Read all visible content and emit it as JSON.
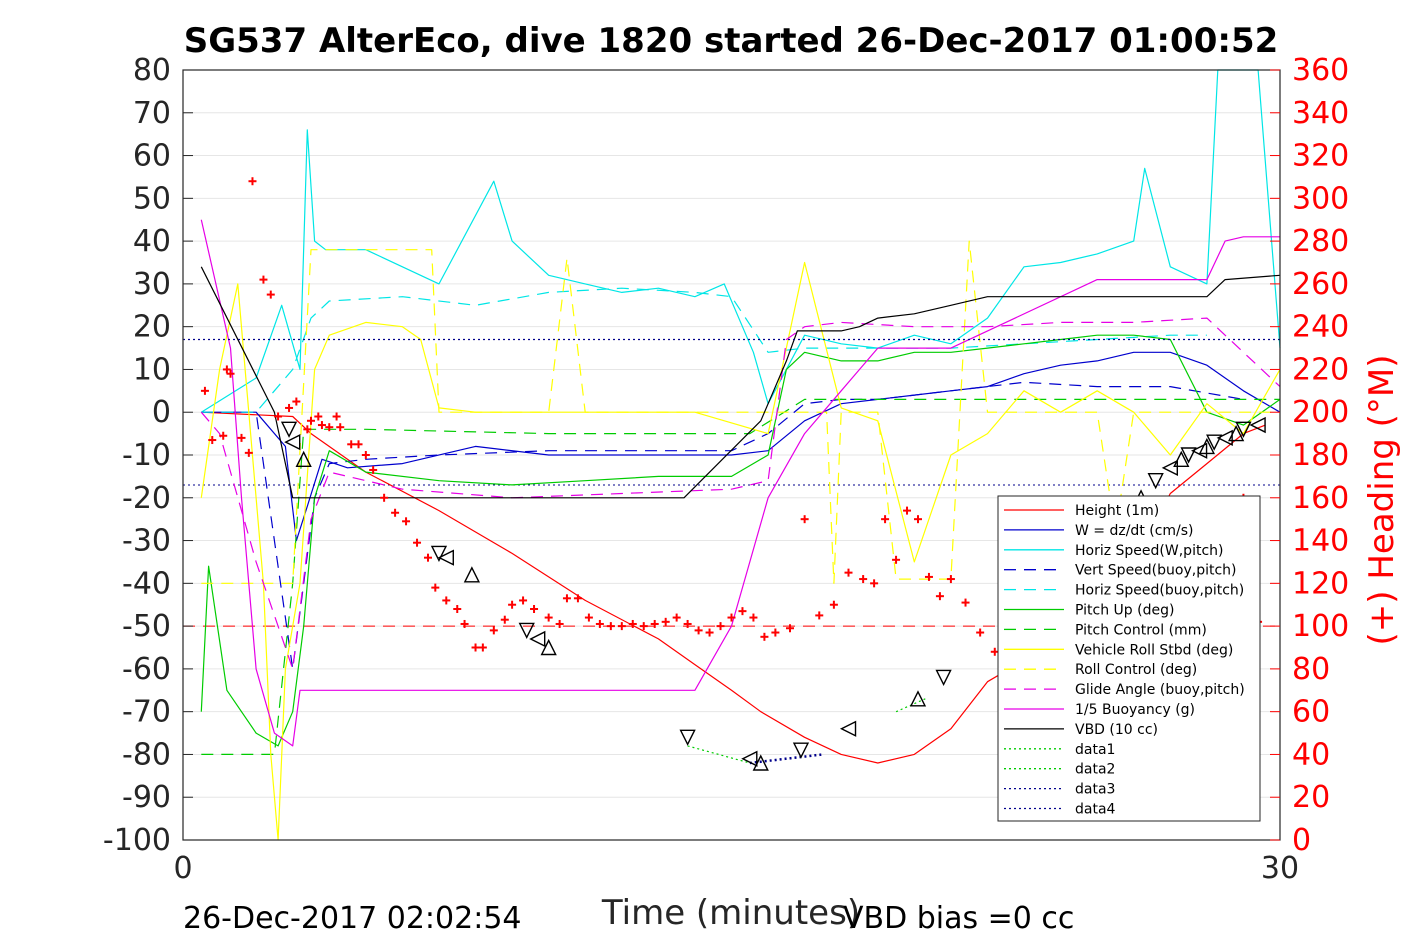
{
  "chart_data": {
    "type": "line",
    "title": "SG537 AlterEco, dive 1820 started 26-Dec-2017 01:00:52",
    "xlabel": "Time (minutes)",
    "ylabel_right": "(+) Heading (°M)",
    "xlim": [
      0,
      30
    ],
    "ylim": [
      -100,
      80
    ],
    "ylim_right": [
      0,
      360
    ],
    "x_ticks": [
      0,
      30
    ],
    "y_ticks": [
      80,
      70,
      60,
      50,
      40,
      30,
      20,
      10,
      0,
      -10,
      -20,
      -30,
      -40,
      -50,
      -60,
      -70,
      -80,
      -90,
      -100
    ],
    "y_ticks_right": [
      360,
      340,
      320,
      300,
      280,
      260,
      240,
      220,
      200,
      180,
      160,
      140,
      120,
      100,
      80,
      60,
      40,
      20,
      0
    ],
    "grid": "horizontal",
    "legend_position": "lower-right",
    "footer_left": "26-Dec-2017 02:02:54",
    "footer_right": "VBD bias =0 cc",
    "colors": {
      "height": "#ff0000",
      "w": "#0000cd",
      "horiz_w": "#00e6e6",
      "pitch": "#00cc00",
      "roll": "#ffff00",
      "glide": "#e600e6",
      "vbd": "#000000",
      "data4": "#00008b",
      "heading": "#ff0000"
    },
    "series": [
      {
        "name": "Height (1m)",
        "x": [
          0.5,
          3,
          3.5,
          5,
          7,
          9,
          11,
          13,
          14,
          15,
          15.8,
          17,
          18,
          19,
          20,
          21,
          22,
          23,
          24,
          25,
          26,
          27,
          28,
          29,
          29.6
        ],
        "y": [
          0,
          -1,
          -5,
          -14,
          -23,
          -33,
          -44,
          -53,
          -59,
          -65,
          -70,
          -76,
          -80,
          -82,
          -80,
          -74,
          -63,
          -58,
          -53,
          -47,
          -35,
          -19,
          -12,
          -5,
          -3
        ]
      },
      {
        "name": "W = dz/dt (cm/s)",
        "x": [
          0.5,
          2,
          2.8,
          3.1,
          3.4,
          3.8,
          4.5,
          6,
          8,
          10,
          12,
          14,
          15,
          16,
          17,
          18,
          19,
          20,
          21,
          22,
          23,
          24,
          25,
          26,
          27,
          28,
          29,
          30
        ],
        "y": [
          0,
          0,
          -8,
          -30,
          -22,
          -11,
          -13,
          -12,
          -8,
          -10,
          -10,
          -10,
          -10,
          -9,
          -2,
          2,
          3,
          4,
          5,
          6,
          9,
          11,
          12,
          14,
          14,
          11,
          5,
          0
        ]
      },
      {
        "name": "Horiz Speed(W,pitch)",
        "x": [
          0.5,
          2,
          2.7,
          3.2,
          3.4,
          3.6,
          3.9,
          5,
          7,
          8.5,
          9,
          10,
          11,
          12,
          13,
          14,
          14.8,
          15.6,
          16,
          17,
          18,
          19,
          20,
          21,
          22,
          23,
          24,
          25,
          26,
          26.3,
          27,
          28,
          28.3,
          28.7,
          29,
          29.4,
          30
        ],
        "y": [
          0,
          8,
          25,
          10,
          66,
          40,
          38,
          38,
          30,
          54,
          40,
          32,
          30,
          28,
          29,
          27,
          30,
          14,
          2,
          18,
          16,
          15,
          18,
          16,
          22,
          34,
          35,
          37,
          40,
          57,
          34,
          30,
          80,
          80,
          80,
          80,
          15
        ]
      },
      {
        "name": "Vert Speed(buoy,pitch)",
        "x": [
          0.5,
          2,
          3,
          3.3,
          3.6,
          4,
          5,
          7,
          10,
          13,
          15,
          16,
          17,
          18,
          19,
          21,
          23,
          25,
          27,
          29
        ],
        "y": [
          0,
          0,
          -60,
          -40,
          -20,
          -12,
          -11,
          -10,
          -9,
          -9,
          -9,
          -5,
          2,
          3,
          3,
          5,
          7,
          6,
          6,
          3
        ]
      },
      {
        "name": "Horiz Speed(buoy,pitch)",
        "x": [
          0.5,
          2,
          3,
          3.5,
          4,
          6,
          8,
          10,
          12,
          14,
          15,
          16,
          17,
          19,
          21,
          23,
          25,
          27,
          28
        ],
        "y": [
          0,
          0,
          10,
          22,
          26,
          27,
          25,
          28,
          29,
          28,
          27,
          14,
          15,
          15,
          15,
          16,
          17,
          18,
          18
        ]
      },
      {
        "name": "Pitch Up (deg)",
        "x": [
          0.5,
          0.7,
          1.2,
          2,
          2.6,
          3,
          3.3,
          3.6,
          4,
          5,
          7,
          9,
          11,
          13,
          15,
          16,
          16.5,
          17,
          18,
          19,
          20,
          21,
          22,
          23,
          24,
          25,
          26,
          27,
          28,
          29,
          30
        ],
        "y": [
          -70,
          -36,
          -65,
          -75,
          -78,
          -70,
          -50,
          -20,
          -9,
          -14,
          -16,
          -17,
          -16,
          -15,
          -15,
          -10,
          10,
          14,
          12,
          12,
          14,
          14,
          15,
          16,
          17,
          18,
          18,
          17,
          0,
          -3,
          3
        ]
      },
      {
        "name": "Pitch Control (mm)",
        "x": [
          0.5,
          2.5,
          3,
          3.3,
          5,
          10,
          14,
          15.5,
          17,
          20,
          25,
          28,
          30
        ],
        "y": [
          -80,
          -80,
          -40,
          -4,
          -4,
          -5,
          -5,
          -5,
          3,
          3,
          3,
          3,
          3
        ]
      },
      {
        "name": "Vehicle Roll Stbd (deg)",
        "x": [
          0.5,
          1,
          1.5,
          2,
          2.2,
          2.4,
          2.6,
          2.8,
          3.2,
          3.6,
          4,
          5,
          6,
          6.5,
          7,
          8,
          9,
          10,
          12,
          13,
          14,
          16,
          17,
          18,
          19,
          20,
          21,
          22,
          23,
          24,
          25,
          26,
          27,
          28,
          29,
          30
        ],
        "y": [
          -20,
          10,
          30,
          -20,
          -40,
          -80,
          -100,
          -60,
          -40,
          10,
          18,
          21,
          20,
          17,
          1,
          0,
          0,
          0,
          0,
          0,
          0,
          -5,
          35,
          1,
          -2,
          -35,
          -10,
          -5,
          5,
          0,
          5,
          0,
          -10,
          2,
          -5,
          10
        ]
      },
      {
        "name": "Roll Control (deg)",
        "x": [
          0.5,
          3,
          3.5,
          6,
          6.8,
          7,
          9,
          10,
          10.5,
          11,
          13,
          17,
          17.6,
          17.8,
          18,
          19,
          19.5,
          21,
          21.5,
          22,
          25,
          25.5,
          26,
          28,
          30
        ],
        "y": [
          -40,
          -40,
          38,
          38,
          38,
          0,
          0,
          0,
          36,
          0,
          0,
          0,
          0,
          -40,
          0,
          0,
          -39,
          -39,
          40,
          0,
          0,
          -28,
          0,
          0,
          0
        ]
      },
      {
        "name": "Glide Angle (buoy,pitch)",
        "x": [
          0.5,
          1,
          2,
          3,
          3.5,
          4,
          6,
          9,
          12,
          15,
          16,
          16.5,
          17,
          18,
          20,
          22,
          24,
          26,
          28,
          30
        ],
        "y": [
          0,
          -5,
          -35,
          -60,
          -25,
          -14,
          -18,
          -20,
          -19,
          -18,
          -16,
          17,
          20,
          21,
          20,
          20,
          21,
          21,
          22,
          6
        ]
      },
      {
        "name": "1/5 Buoyancy (g)",
        "x": [
          0.5,
          1.3,
          1.6,
          2,
          2.5,
          3,
          3.2,
          13.5,
          14,
          15,
          16,
          17,
          18,
          19,
          20,
          21,
          25,
          26,
          27,
          28,
          28.5,
          29,
          30
        ],
        "y": [
          45,
          15,
          -20,
          -60,
          -75,
          -78,
          -65,
          -65,
          -65,
          -50,
          -20,
          -5,
          5,
          15,
          15,
          15,
          31,
          31,
          31,
          31,
          40,
          41,
          41
        ]
      },
      {
        "name": "VBD (10 cc)",
        "x": [
          0.5,
          2.5,
          3,
          3.2,
          13.7,
          15.8,
          16.5,
          16.8,
          18,
          18.5,
          19,
          20,
          21,
          22,
          27,
          28,
          28.5,
          30
        ],
        "y": [
          34,
          0,
          -20,
          -20,
          -20,
          -2,
          12,
          19,
          19,
          20,
          22,
          23,
          25,
          27,
          27,
          27,
          31,
          32
        ]
      },
      {
        "name": "data1",
        "x": [
          13.8,
          15.5
        ],
        "y": [
          -78,
          -82
        ]
      },
      {
        "name": "data2",
        "x": [
          19.5,
          20.3
        ],
        "y": [
          -70,
          -67
        ]
      },
      {
        "name": "data3",
        "x": [
          15.5,
          17.5
        ],
        "y": [
          -82,
          -80
        ]
      },
      {
        "name": "data4",
        "x": [
          0,
          30
        ],
        "y": [
          17,
          17
        ]
      }
    ],
    "reference_lines": [
      {
        "y": -17,
        "style": "dotted"
      },
      {
        "y": -50,
        "style": "dashed",
        "axis": "right"
      }
    ],
    "heading_points": {
      "x": [
        0.6,
        0.8,
        1.1,
        1.2,
        1.3,
        1.6,
        1.8,
        1.9,
        2.2,
        2.4,
        2.6,
        2.9,
        3.1,
        3.4,
        3.5,
        3.7,
        3.8,
        4.0,
        4.2,
        4.3,
        4.6,
        4.8,
        5.0,
        5.2,
        5.5,
        5.8,
        6.1,
        6.4,
        6.7,
        6.9,
        7.2,
        7.5,
        7.7,
        8.0,
        8.2,
        8.5,
        8.8,
        9.0,
        9.3,
        9.6,
        10.0,
        10.3,
        10.5,
        10.8,
        11.1,
        11.4,
        11.7,
        12.0,
        12.3,
        12.6,
        12.9,
        13.2,
        13.5,
        13.8,
        14.1,
        14.4,
        14.7,
        15.0,
        15.3,
        15.6,
        15.9,
        16.2,
        16.6,
        17.0,
        17.4,
        17.8,
        18.2,
        18.6,
        18.9,
        19.2,
        19.5,
        19.8,
        20.1,
        20.4,
        20.7,
        21.0,
        21.4,
        21.8,
        22.2,
        22.6,
        23.0,
        23.4,
        23.8,
        24.2,
        24.6,
        25.0,
        25.4,
        25.8,
        26.2,
        26.6,
        27.0,
        27.4,
        27.8,
        28.2,
        28.6,
        29.0,
        29.4
      ],
      "y": [
        210,
        187,
        189,
        220,
        218,
        188,
        181,
        308,
        262,
        255,
        198,
        202,
        205,
        192,
        196,
        198,
        194,
        193,
        198,
        193,
        185,
        185,
        180,
        173,
        160,
        153,
        149,
        139,
        132,
        118,
        112,
        108,
        101,
        90,
        90,
        98,
        103,
        110,
        112,
        108,
        104,
        101,
        113,
        113,
        104,
        101,
        100,
        100,
        101,
        100,
        101,
        102,
        104,
        101,
        98,
        97,
        100,
        104,
        107,
        104,
        95,
        97,
        99,
        150,
        105,
        110,
        125,
        122,
        120,
        150,
        131,
        154,
        150,
        123,
        114,
        122,
        111,
        97,
        88,
        78,
        71,
        85,
        89,
        95,
        99,
        101,
        107,
        110,
        108,
        96,
        94,
        90,
        92,
        107,
        114,
        160,
        102
      ]
    },
    "glider_markers": {
      "x": [
        2.9,
        3.0,
        3.3,
        7.0,
        7.2,
        7.9,
        9.4,
        9.7,
        10.0,
        13.8,
        15.5,
        15.8,
        16.9,
        18.2,
        20.1,
        20.8,
        23.0,
        23.3,
        25.0,
        25.6,
        26.2,
        26.6,
        27.0,
        27.3,
        27.5,
        27.8,
        28.0,
        28.2,
        28.5,
        28.8,
        29.0,
        29.4
      ],
      "y": [
        -4,
        -7,
        -11,
        -33,
        -34,
        -38,
        -51,
        -53,
        -55,
        -76,
        -81,
        -82,
        -79,
        -74,
        -67,
        -62,
        -53,
        -50,
        -35,
        -26,
        -20,
        -16,
        -13,
        -11,
        -10,
        -9,
        -8,
        -7,
        -6,
        -5,
        -4,
        -3
      ]
    }
  },
  "legend": [
    {
      "label": "Height (1m)",
      "color": "#ff0000",
      "dash": ""
    },
    {
      "label": "W = dz/dt (cm/s)",
      "color": "#0000cd",
      "dash": ""
    },
    {
      "label": "Horiz Speed(W,pitch)",
      "color": "#00e6e6",
      "dash": ""
    },
    {
      "label": "Vert Speed(buoy,pitch)",
      "color": "#0000cd",
      "dash": "12,8"
    },
    {
      "label": "Horiz Speed(buoy,pitch)",
      "color": "#00e6e6",
      "dash": "12,8"
    },
    {
      "label": "Pitch Up (deg)",
      "color": "#00cc00",
      "dash": ""
    },
    {
      "label": "Pitch Control (mm)",
      "color": "#00cc00",
      "dash": "12,8"
    },
    {
      "label": "Vehicle Roll Stbd (deg)",
      "color": "#ffff00",
      "dash": ""
    },
    {
      "label": "Roll Control (deg)",
      "color": "#ffff00",
      "dash": "12,8"
    },
    {
      "label": "Glide Angle (buoy,pitch)",
      "color": "#e600e6",
      "dash": "12,8"
    },
    {
      "label": "1/5 Buoyancy (g)",
      "color": "#e600e6",
      "dash": ""
    },
    {
      "label": "VBD (10 cc)",
      "color": "#000000",
      "dash": ""
    },
    {
      "label": "data1",
      "color": "#00cc00",
      "dash": "2,3"
    },
    {
      "label": "data2",
      "color": "#00cc00",
      "dash": "2,3"
    },
    {
      "label": "data3",
      "color": "#00008b",
      "dash": "2,3"
    },
    {
      "label": "data4",
      "color": "#00008b",
      "dash": "2,3"
    }
  ]
}
